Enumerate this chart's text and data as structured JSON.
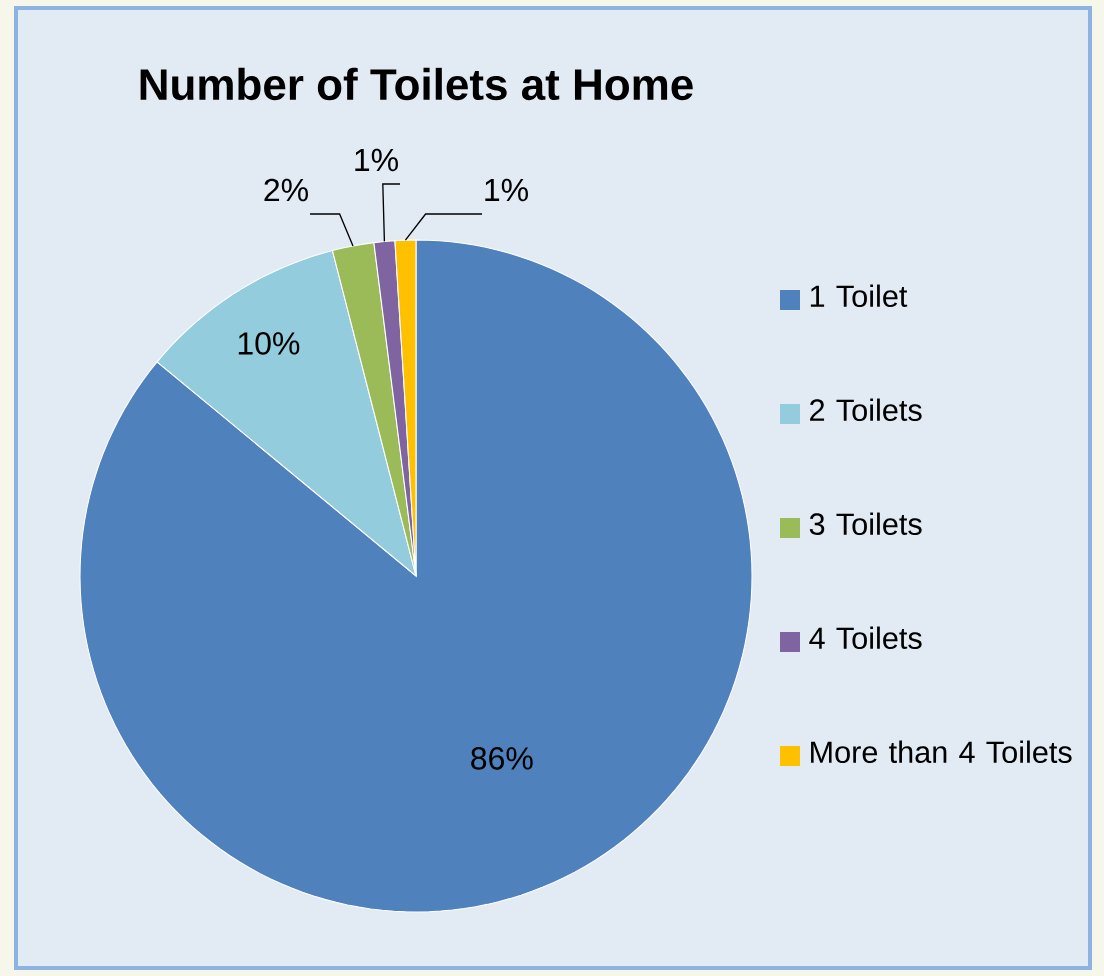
{
  "chart_data": {
    "type": "pie",
    "title": "Number of Toilets at Home",
    "categories": [
      "1 Toilet",
      "2 Toilets",
      "3 Toilets",
      "4 Toilets",
      "More than 4 Toilets"
    ],
    "values": [
      86,
      10,
      2,
      1,
      1
    ],
    "colors": [
      "#4f81bd",
      "#93cddd",
      "#9bbb59",
      "#8064a2",
      "#ffc000"
    ],
    "value_labels": [
      "86%",
      "10%",
      "2%",
      "1%",
      "1%"
    ],
    "legend": "right"
  }
}
